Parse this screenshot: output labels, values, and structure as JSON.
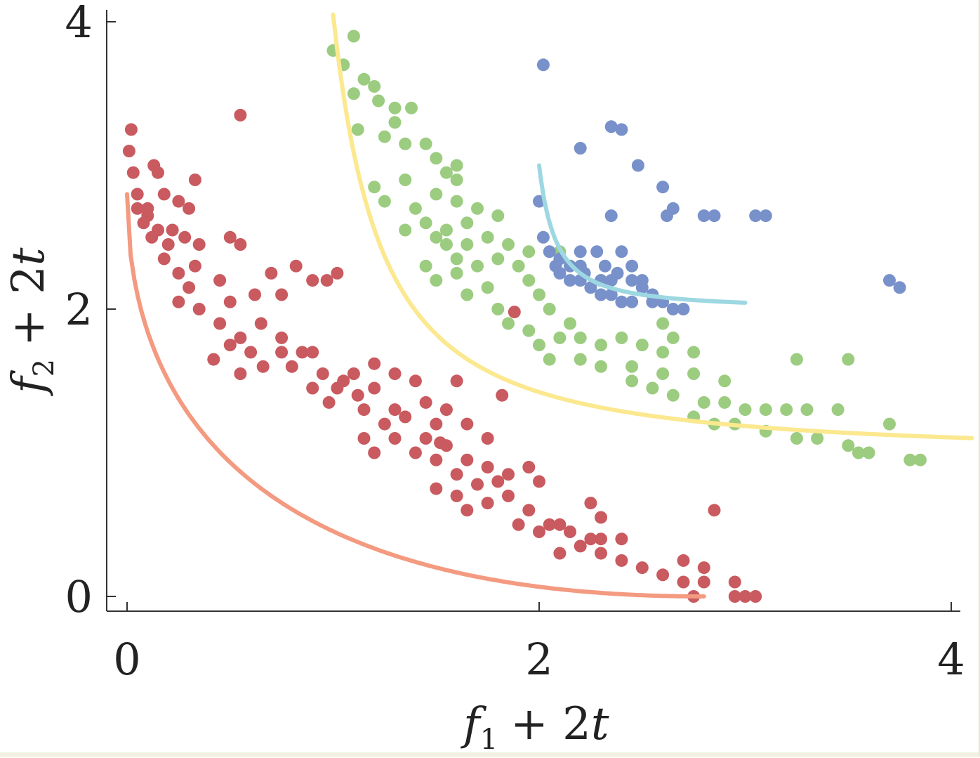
{
  "chart_data": {
    "type": "scatter",
    "title": "",
    "xlabel": {
      "var": "f",
      "sub": "1",
      "rest": "+ 2",
      "var2": "t"
    },
    "ylabel": {
      "var": "f",
      "sub": "2",
      "rest": "+ 2",
      "var2": "t"
    },
    "xlim": [
      -0.1,
      4.1
    ],
    "ylim": [
      -0.1,
      4.1
    ],
    "xticks": [
      "0",
      "2",
      "4"
    ],
    "yticks": [
      "0",
      "2",
      "4"
    ],
    "grid": false,
    "legend": "none",
    "colors": {
      "red_points": "#c95a5f",
      "red_curve": "#f39a80",
      "green_points": "#9ccc80",
      "green_curve": "#fbe88f",
      "blue_points": "#7891ca",
      "blue_curve": "#9dd8e2",
      "axis": "#333333"
    },
    "series": [
      {
        "color_key": "red",
        "front": {
          "t": 0,
          "x_range": [
            0.0,
            2.8
          ]
        },
        "points": [
          [
            0.55,
            3.35
          ],
          [
            0.02,
            3.25
          ],
          [
            0.01,
            3.1
          ],
          [
            0.03,
            2.95
          ],
          [
            0.13,
            3.0
          ],
          [
            0.15,
            2.95
          ],
          [
            0.33,
            2.9
          ],
          [
            0.05,
            2.8
          ],
          [
            0.18,
            2.8
          ],
          [
            0.05,
            2.7
          ],
          [
            0.1,
            2.65
          ],
          [
            0.3,
            2.7
          ],
          [
            0.15,
            2.55
          ],
          [
            0.2,
            2.45
          ],
          [
            0.35,
            2.45
          ],
          [
            0.12,
            2.5
          ],
          [
            0.22,
            2.55
          ],
          [
            0.28,
            2.5
          ],
          [
            0.5,
            2.5
          ],
          [
            0.55,
            2.45
          ],
          [
            0.33,
            2.3
          ],
          [
            0.45,
            2.2
          ],
          [
            0.18,
            2.35
          ],
          [
            0.25,
            2.25
          ],
          [
            0.3,
            2.15
          ],
          [
            0.25,
            2.05
          ],
          [
            0.35,
            2.0
          ],
          [
            0.5,
            2.05
          ],
          [
            0.62,
            2.1
          ],
          [
            0.82,
            2.3
          ],
          [
            0.7,
            2.25
          ],
          [
            0.9,
            2.2
          ],
          [
            0.97,
            2.2
          ],
          [
            1.02,
            2.25
          ],
          [
            0.75,
            2.1
          ],
          [
            0.45,
            1.9
          ],
          [
            0.55,
            1.8
          ],
          [
            0.65,
            1.9
          ],
          [
            0.75,
            1.8
          ],
          [
            0.5,
            1.75
          ],
          [
            0.6,
            1.7
          ],
          [
            0.42,
            1.65
          ],
          [
            0.55,
            1.55
          ],
          [
            0.66,
            1.6
          ],
          [
            0.75,
            1.7
          ],
          [
            0.85,
            1.7
          ],
          [
            0.9,
            1.7
          ],
          [
            0.8,
            1.6
          ],
          [
            0.95,
            1.55
          ],
          [
            1.02,
            1.45
          ],
          [
            1.2,
            1.45
          ],
          [
            0.9,
            1.45
          ],
          [
            0.98,
            1.35
          ],
          [
            1.12,
            1.4
          ],
          [
            1.3,
            1.3
          ],
          [
            1.35,
            1.25
          ],
          [
            1.15,
            1.3
          ],
          [
            1.4,
            1.5
          ],
          [
            1.05,
            1.5
          ],
          [
            1.1,
            1.55
          ],
          [
            1.2,
            1.62
          ],
          [
            1.3,
            1.55
          ],
          [
            1.45,
            1.35
          ],
          [
            1.55,
            1.3
          ],
          [
            1.65,
            1.2
          ],
          [
            1.75,
            1.1
          ],
          [
            1.5,
            1.2
          ],
          [
            1.45,
            1.1
          ],
          [
            1.55,
            1.05
          ],
          [
            1.25,
            1.2
          ],
          [
            1.3,
            1.1
          ],
          [
            1.15,
            1.1
          ],
          [
            1.2,
            1.0
          ],
          [
            1.4,
            1.0
          ],
          [
            1.5,
            0.95
          ],
          [
            1.65,
            0.95
          ],
          [
            1.75,
            0.9
          ],
          [
            1.85,
            0.85
          ],
          [
            1.95,
            0.9
          ],
          [
            2.0,
            0.8
          ],
          [
            1.8,
            0.8
          ],
          [
            1.6,
            0.85
          ],
          [
            1.7,
            0.78
          ],
          [
            1.85,
            0.7
          ],
          [
            1.95,
            0.6
          ],
          [
            1.75,
            0.65
          ],
          [
            1.6,
            0.7
          ],
          [
            1.5,
            0.75
          ],
          [
            1.65,
            0.6
          ],
          [
            2.05,
            0.5
          ],
          [
            2.1,
            0.5
          ],
          [
            2.3,
            0.55
          ],
          [
            2.25,
            0.65
          ],
          [
            2.15,
            0.45
          ],
          [
            2.0,
            0.45
          ],
          [
            1.9,
            0.5
          ],
          [
            2.25,
            0.4
          ],
          [
            2.3,
            0.4
          ],
          [
            2.4,
            0.4
          ],
          [
            2.2,
            0.35
          ],
          [
            2.1,
            0.3
          ],
          [
            2.3,
            0.3
          ],
          [
            2.4,
            0.25
          ],
          [
            2.5,
            0.2
          ],
          [
            2.6,
            0.15
          ],
          [
            2.7,
            0.1
          ],
          [
            2.8,
            0.1
          ],
          [
            2.75,
            0.0
          ],
          [
            2.95,
            0.0
          ],
          [
            3.0,
            0.0
          ],
          [
            3.05,
            0.0
          ],
          [
            2.95,
            0.1
          ],
          [
            2.8,
            0.2
          ],
          [
            2.7,
            0.25
          ],
          [
            2.85,
            0.6
          ],
          [
            1.52,
            1.07
          ],
          [
            1.82,
            1.4
          ],
          [
            1.6,
            1.5
          ],
          [
            1.88,
            1.98
          ],
          [
            0.25,
            2.75
          ],
          [
            0.1,
            2.7
          ],
          [
            0.08,
            2.6
          ]
        ]
      },
      {
        "color_key": "green",
        "front": {
          "t": 0.5,
          "x_range": [
            1.0,
            4.1
          ]
        },
        "points": [
          [
            1.1,
            3.9
          ],
          [
            1.0,
            3.8
          ],
          [
            1.05,
            3.7
          ],
          [
            1.15,
            3.6
          ],
          [
            1.2,
            3.55
          ],
          [
            1.22,
            3.45
          ],
          [
            1.1,
            3.5
          ],
          [
            1.3,
            3.4
          ],
          [
            1.38,
            3.4
          ],
          [
            1.3,
            3.3
          ],
          [
            1.12,
            3.25
          ],
          [
            1.25,
            3.2
          ],
          [
            1.35,
            3.15
          ],
          [
            1.45,
            3.15
          ],
          [
            1.5,
            3.05
          ],
          [
            1.55,
            2.95
          ],
          [
            1.6,
            2.9
          ],
          [
            1.35,
            2.9
          ],
          [
            1.2,
            2.85
          ],
          [
            1.25,
            2.75
          ],
          [
            1.4,
            2.7
          ],
          [
            1.5,
            2.8
          ],
          [
            1.6,
            2.75
          ],
          [
            1.7,
            2.7
          ],
          [
            1.8,
            2.65
          ],
          [
            1.65,
            2.6
          ],
          [
            1.55,
            2.55
          ],
          [
            1.45,
            2.6
          ],
          [
            1.35,
            2.55
          ],
          [
            1.5,
            2.5
          ],
          [
            1.65,
            2.45
          ],
          [
            1.75,
            2.5
          ],
          [
            1.85,
            2.45
          ],
          [
            1.95,
            2.4
          ],
          [
            2.1,
            2.4
          ],
          [
            2.2,
            2.3
          ],
          [
            2.3,
            2.2
          ],
          [
            1.8,
            2.35
          ],
          [
            1.9,
            2.3
          ],
          [
            1.95,
            2.2
          ],
          [
            2.0,
            2.1
          ],
          [
            2.05,
            2.0
          ],
          [
            1.7,
            2.3
          ],
          [
            1.6,
            2.25
          ],
          [
            1.5,
            2.2
          ],
          [
            1.45,
            2.3
          ],
          [
            1.75,
            2.15
          ],
          [
            1.65,
            2.1
          ],
          [
            1.8,
            2.0
          ],
          [
            1.85,
            1.9
          ],
          [
            1.95,
            1.85
          ],
          [
            2.1,
            1.8
          ],
          [
            2.2,
            1.8
          ],
          [
            2.3,
            1.75
          ],
          [
            2.4,
            1.8
          ],
          [
            2.5,
            1.75
          ],
          [
            2.6,
            1.7
          ],
          [
            2.65,
            1.8
          ],
          [
            2.75,
            1.7
          ],
          [
            2.3,
            1.6
          ],
          [
            2.45,
            1.6
          ],
          [
            2.6,
            1.55
          ],
          [
            2.75,
            1.55
          ],
          [
            2.9,
            1.5
          ],
          [
            2.45,
            1.5
          ],
          [
            2.55,
            1.45
          ],
          [
            2.65,
            1.4
          ],
          [
            2.8,
            1.35
          ],
          [
            2.9,
            1.35
          ],
          [
            3.0,
            1.3
          ],
          [
            3.1,
            1.3
          ],
          [
            3.2,
            1.3
          ],
          [
            2.75,
            1.25
          ],
          [
            2.85,
            1.2
          ],
          [
            2.95,
            1.2
          ],
          [
            3.1,
            1.15
          ],
          [
            3.25,
            1.1
          ],
          [
            3.35,
            1.1
          ],
          [
            3.5,
            1.05
          ],
          [
            3.55,
            1.0
          ],
          [
            3.6,
            1.0
          ],
          [
            3.8,
            0.95
          ],
          [
            3.85,
            0.95
          ],
          [
            3.3,
            1.3
          ],
          [
            3.45,
            1.3
          ],
          [
            3.7,
            1.2
          ],
          [
            3.5,
            1.65
          ],
          [
            3.25,
            1.65
          ],
          [
            2.6,
            1.9
          ],
          [
            2.15,
            1.9
          ],
          [
            1.6,
            2.35
          ],
          [
            1.55,
            2.45
          ],
          [
            1.6,
            3.0
          ],
          [
            2.0,
            1.75
          ],
          [
            2.05,
            1.65
          ],
          [
            2.2,
            1.65
          ]
        ]
      },
      {
        "color_key": "blue",
        "front": {
          "t": 1,
          "x_range": [
            2.0,
            3.0
          ]
        },
        "points": [
          [
            2.02,
            3.7
          ],
          [
            2.2,
            3.12
          ],
          [
            2.35,
            3.27
          ],
          [
            2.4,
            3.25
          ],
          [
            2.48,
            3.0
          ],
          [
            2.6,
            2.85
          ],
          [
            2.35,
            2.65
          ],
          [
            2.65,
            2.7
          ],
          [
            2.62,
            2.65
          ],
          [
            2.8,
            2.65
          ],
          [
            2.85,
            2.65
          ],
          [
            3.05,
            2.65
          ],
          [
            3.1,
            2.65
          ],
          [
            3.7,
            2.2
          ],
          [
            3.75,
            2.15
          ],
          [
            2.02,
            2.5
          ],
          [
            2.05,
            2.4
          ],
          [
            2.08,
            2.3
          ],
          [
            2.1,
            2.25
          ],
          [
            2.15,
            2.2
          ],
          [
            2.2,
            2.2
          ],
          [
            2.25,
            2.15
          ],
          [
            2.3,
            2.1
          ],
          [
            2.35,
            2.1
          ],
          [
            2.4,
            2.05
          ],
          [
            2.45,
            2.05
          ],
          [
            2.55,
            2.05
          ],
          [
            2.6,
            2.05
          ],
          [
            2.65,
            2.0
          ],
          [
            2.7,
            2.0
          ],
          [
            2.1,
            2.35
          ],
          [
            2.15,
            2.3
          ],
          [
            2.2,
            2.3
          ],
          [
            2.28,
            2.4
          ],
          [
            2.32,
            2.3
          ],
          [
            2.4,
            2.4
          ],
          [
            2.38,
            2.25
          ],
          [
            2.45,
            2.2
          ],
          [
            2.5,
            2.15
          ],
          [
            2.55,
            2.1
          ],
          [
            2.22,
            2.25
          ],
          [
            2.3,
            2.2
          ],
          [
            2.35,
            2.2
          ],
          [
            2.5,
            2.2
          ],
          [
            2.45,
            2.3
          ],
          [
            2.0,
            2.75
          ],
          [
            2.2,
            2.4
          ]
        ]
      }
    ]
  }
}
